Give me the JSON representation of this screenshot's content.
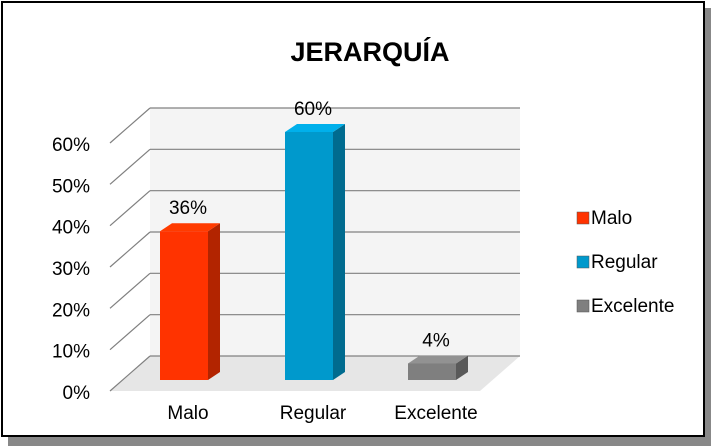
{
  "chart_data": {
    "type": "bar3d",
    "title": "JERARQUÍA",
    "categories": [
      "Malo",
      "Regular",
      "Excelente"
    ],
    "values": [
      36,
      60,
      4
    ],
    "value_labels": [
      "36%",
      "60%",
      "4%"
    ],
    "colors": [
      "#ff3300",
      "#0099cc",
      "#7f7f7f"
    ],
    "ylim": [
      0,
      60
    ],
    "yticks": [
      {
        "value": 0,
        "label": "0%"
      },
      {
        "value": 10,
        "label": "10%"
      },
      {
        "value": 20,
        "label": "20%"
      },
      {
        "value": 30,
        "label": "30%"
      },
      {
        "value": 40,
        "label": "40%"
      },
      {
        "value": 50,
        "label": "50%"
      },
      {
        "value": 60,
        "label": "60%"
      }
    ],
    "grid": true,
    "legend": "right"
  }
}
